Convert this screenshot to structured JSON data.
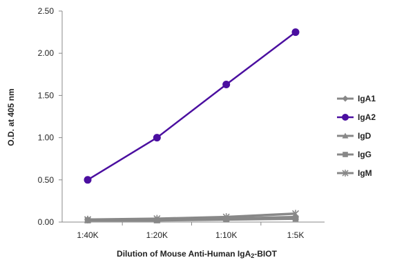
{
  "chart_data": {
    "type": "line",
    "title": "",
    "xlabel": "Dilution of Mouse Anti-Human IgA",
    "xlabel_subscript": "2",
    "xlabel_suffix": "-BIOT",
    "ylabel": "O.D. at 405 nm",
    "categories": [
      "1:40K",
      "1:20K",
      "1:10K",
      "1:5K"
    ],
    "ylim": [
      0,
      2.5
    ],
    "yticks": [
      "0.00",
      "0.50",
      "1.00",
      "1.50",
      "2.00",
      "2.50"
    ],
    "grid": false,
    "legend_position": "right",
    "series": [
      {
        "name": "IgA1",
        "values": [
          0.03,
          0.03,
          0.04,
          0.05
        ],
        "color": "#888888",
        "marker": "diamond"
      },
      {
        "name": "IgA2",
        "values": [
          0.5,
          1.0,
          1.63,
          2.25
        ],
        "color": "#4b0fa0",
        "marker": "circle"
      },
      {
        "name": "IgD",
        "values": [
          0.02,
          0.02,
          0.04,
          0.06
        ],
        "color": "#888888",
        "marker": "triangle"
      },
      {
        "name": "IgG",
        "values": [
          0.02,
          0.02,
          0.03,
          0.04
        ],
        "color": "#888888",
        "marker": "square"
      },
      {
        "name": "IgM",
        "values": [
          0.03,
          0.04,
          0.06,
          0.1
        ],
        "color": "#888888",
        "marker": "star"
      }
    ]
  }
}
